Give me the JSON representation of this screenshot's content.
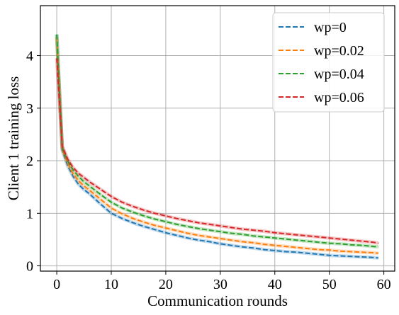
{
  "chart_data": {
    "type": "line",
    "xlabel": "Communication rounds",
    "ylabel": "Client 1 training loss",
    "xlim": [
      -3,
      62
    ],
    "ylim": [
      -0.1,
      4.95
    ],
    "xticks": [
      0,
      10,
      20,
      30,
      40,
      50,
      60
    ],
    "yticks": [
      0,
      1,
      2,
      3,
      4
    ],
    "grid": true,
    "legend_position": "top-right",
    "series": [
      {
        "name": "wp=0",
        "color": "#1f77b4",
        "x": [
          0,
          1,
          2,
          3,
          4,
          5,
          6,
          8,
          10,
          12,
          14,
          16,
          18,
          20,
          22,
          24,
          26,
          28,
          30,
          32,
          34,
          36,
          38,
          40,
          42,
          44,
          46,
          48,
          50,
          52,
          54,
          56,
          58,
          59
        ],
        "y": [
          4.4,
          2.2,
          1.9,
          1.7,
          1.55,
          1.45,
          1.37,
          1.18,
          1.0,
          0.9,
          0.82,
          0.75,
          0.69,
          0.63,
          0.58,
          0.53,
          0.49,
          0.46,
          0.42,
          0.39,
          0.36,
          0.34,
          0.31,
          0.29,
          0.27,
          0.26,
          0.24,
          0.22,
          0.2,
          0.19,
          0.18,
          0.17,
          0.16,
          0.15
        ]
      },
      {
        "name": "wp=0.02",
        "color": "#ff7f0e",
        "x": [
          0,
          1,
          2,
          3,
          4,
          5,
          6,
          8,
          10,
          12,
          14,
          16,
          18,
          20,
          22,
          24,
          26,
          28,
          30,
          32,
          34,
          36,
          38,
          40,
          42,
          44,
          46,
          48,
          50,
          52,
          54,
          56,
          58,
          59
        ],
        "y": [
          4.35,
          2.22,
          1.95,
          1.75,
          1.62,
          1.52,
          1.44,
          1.27,
          1.1,
          0.99,
          0.9,
          0.83,
          0.77,
          0.72,
          0.67,
          0.62,
          0.58,
          0.55,
          0.52,
          0.49,
          0.46,
          0.44,
          0.41,
          0.39,
          0.37,
          0.35,
          0.33,
          0.31,
          0.3,
          0.28,
          0.27,
          0.26,
          0.25,
          0.24
        ]
      },
      {
        "name": "wp=0.04",
        "color": "#2ca02c",
        "x": [
          0,
          1,
          2,
          3,
          4,
          5,
          6,
          8,
          10,
          12,
          14,
          16,
          18,
          20,
          22,
          24,
          26,
          28,
          30,
          32,
          34,
          36,
          38,
          40,
          42,
          44,
          46,
          48,
          50,
          52,
          54,
          56,
          58,
          59
        ],
        "y": [
          4.4,
          2.25,
          2.0,
          1.82,
          1.7,
          1.6,
          1.52,
          1.36,
          1.21,
          1.1,
          1.02,
          0.95,
          0.89,
          0.84,
          0.79,
          0.75,
          0.71,
          0.68,
          0.65,
          0.62,
          0.6,
          0.57,
          0.55,
          0.53,
          0.51,
          0.49,
          0.47,
          0.45,
          0.43,
          0.42,
          0.4,
          0.39,
          0.37,
          0.36
        ]
      },
      {
        "name": "wp=0.06",
        "color": "#d62728",
        "x": [
          0,
          1,
          2,
          3,
          4,
          5,
          6,
          8,
          10,
          12,
          14,
          16,
          18,
          20,
          22,
          24,
          26,
          28,
          30,
          32,
          34,
          36,
          38,
          40,
          42,
          44,
          46,
          48,
          50,
          52,
          54,
          56,
          58,
          59
        ],
        "y": [
          3.95,
          2.28,
          2.03,
          1.87,
          1.76,
          1.68,
          1.6,
          1.46,
          1.32,
          1.21,
          1.13,
          1.06,
          1.0,
          0.95,
          0.9,
          0.86,
          0.82,
          0.79,
          0.76,
          0.73,
          0.7,
          0.68,
          0.66,
          0.63,
          0.61,
          0.59,
          0.57,
          0.55,
          0.53,
          0.51,
          0.49,
          0.47,
          0.45,
          0.43
        ]
      }
    ]
  }
}
